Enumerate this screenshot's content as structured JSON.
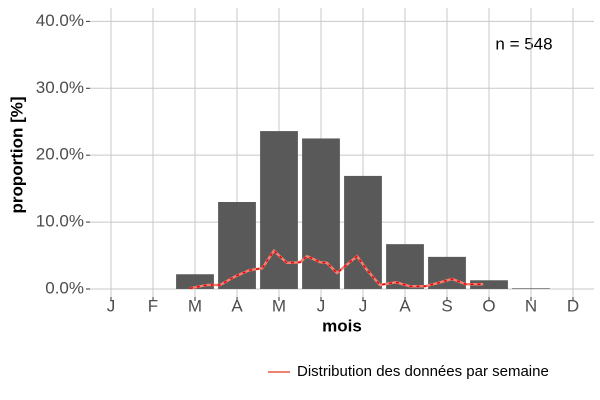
{
  "chart_data": {
    "type": "bar",
    "x_label": "mois",
    "y_label": "proportion [%]",
    "annotation": "n = 548",
    "categories": [
      "J",
      "F",
      "M",
      "A",
      "M",
      "J",
      "J",
      "A",
      "S",
      "O",
      "N",
      "D"
    ],
    "values": [
      0,
      0,
      2.2,
      13.0,
      23.6,
      22.5,
      16.9,
      6.7,
      4.8,
      1.3,
      0.1,
      0
    ],
    "color": "#595959",
    "ylim": [
      -1.2,
      42
    ],
    "yticks": [
      {
        "value": 0,
        "label": "0.0%"
      },
      {
        "value": 10,
        "label": "10.0%"
      },
      {
        "value": 20,
        "label": "20.0%"
      },
      {
        "value": 30,
        "label": "30.0%"
      },
      {
        "value": 40,
        "label": "40.0%"
      }
    ],
    "grid": true,
    "series": [
      {
        "name": "Distribution des données par semaine",
        "color": "#f08070",
        "x": [
          2.88,
          3.29,
          3.6,
          3.93,
          4.29,
          4.6,
          4.88,
          5.19,
          5.5,
          5.67,
          5.98,
          6.14,
          6.38,
          6.86,
          7.1,
          7.4,
          7.79,
          8.12,
          8.48,
          8.79,
          9.12,
          9.45,
          9.86
        ],
        "values": [
          0.1,
          0.6,
          0.6,
          1.8,
          2.8,
          3.1,
          5.7,
          3.9,
          4.0,
          4.9,
          4.0,
          3.9,
          2.4,
          4.9,
          2.8,
          0.6,
          1.0,
          0.4,
          0.4,
          0.9,
          1.5,
          0.7,
          0.7
        ]
      }
    ]
  }
}
